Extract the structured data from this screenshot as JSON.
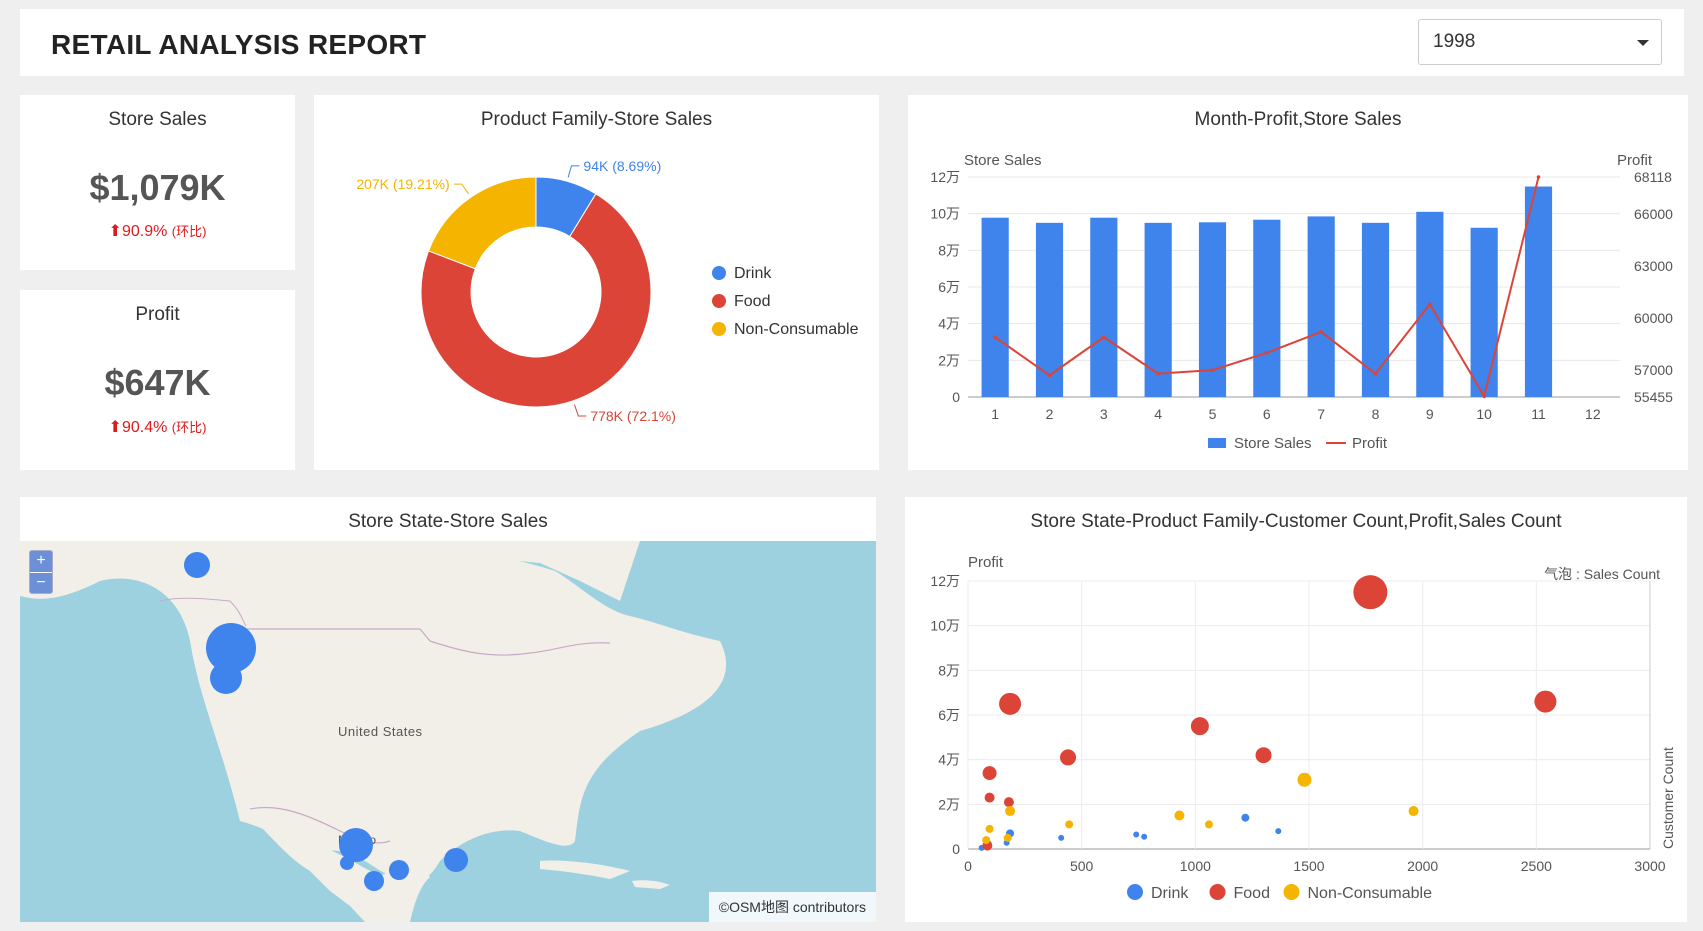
{
  "header": {
    "title": "RETAIL ANALYSIS REPORT",
    "year_selected": "1998"
  },
  "colors": {
    "drink": "#3f83ec",
    "food": "#db4437",
    "non_consumable": "#f4b400",
    "up": "#e0191b"
  },
  "kpis": {
    "store_sales": {
      "label": "Store Sales",
      "value": "$1,079K",
      "change": "90.9%",
      "change_note": "(环比)"
    },
    "profit": {
      "label": "Profit",
      "value": "$647K",
      "change": "90.4%",
      "change_note": "(环比)"
    }
  },
  "donut": {
    "title": "Product Family-Store Sales",
    "slices": [
      {
        "name": "Drink",
        "value": 94,
        "label": "94K (8.69%)",
        "color": "#3f83ec"
      },
      {
        "name": "Food",
        "value": 778,
        "label": "778K (72.1%)",
        "color": "#db4437"
      },
      {
        "name": "Non-Consumable",
        "value": 207,
        "label": "207K (19.21%)",
        "color": "#f4b400"
      }
    ]
  },
  "combo": {
    "title": "Month-Profit,Store Sales",
    "chart_data": {
      "type": "bar",
      "title": "Month-Profit,Store Sales",
      "ylabel": "Store Sales",
      "y2label": "Profit",
      "categories": [
        "1",
        "2",
        "3",
        "4",
        "5",
        "6",
        "7",
        "8",
        "9",
        "10",
        "11",
        "12"
      ],
      "ylim": [
        0,
        120000
      ],
      "y2lim": [
        55455,
        68118
      ],
      "y_ticks": [
        "0",
        "2万",
        "4万",
        "6万",
        "8万",
        "10万",
        "12万"
      ],
      "y2_ticks": [
        "55455",
        "57000",
        "60000",
        "63000",
        "66000",
        "68118"
      ],
      "series": [
        {
          "name": "Store Sales",
          "type": "bar",
          "color": "#3f83ec",
          "values": [
            97800,
            95000,
            97800,
            95000,
            95300,
            96700,
            98500,
            95000,
            101000,
            92300,
            114800,
            null
          ]
        },
        {
          "name": "Profit",
          "type": "line",
          "color": "#db4437",
          "values": [
            58900,
            56700,
            58900,
            56800,
            57000,
            58000,
            59200,
            56800,
            60800,
            55500,
            68118,
            null
          ]
        }
      ],
      "legend": "bottom"
    }
  },
  "map": {
    "title": "Store State-Store Sales",
    "zoom_in": "+",
    "zoom_out": "−",
    "country_label": "United States",
    "mexico_label": "Mexico",
    "attribution": "©OSM地图 contributors"
  },
  "bubble": {
    "title": "Store State-Product Family-Customer Count,Profit,Sales Count",
    "chart_data": {
      "type": "scatter",
      "title": "Store State-Product Family-Customer Count,Profit,Sales Count",
      "ylabel": "Profit",
      "y2label": "Customer Count",
      "size_label": "气泡 : Sales Count",
      "xlim": [
        0,
        3000
      ],
      "ylim": [
        0,
        120000
      ],
      "x_ticks": [
        "0",
        "500",
        "1000",
        "1500",
        "2000",
        "2500",
        "3000"
      ],
      "y_ticks": [
        "0",
        "2万",
        "4万",
        "6万",
        "8万",
        "10万",
        "12万"
      ],
      "legend": "bottom",
      "series": [
        {
          "name": "Drink",
          "color": "#3f83ec",
          "points": [
            {
              "x": 60,
              "y": 500,
              "s": 3
            },
            {
              "x": 90,
              "y": 2500,
              "s": 3
            },
            {
              "x": 170,
              "y": 2800,
              "s": 3
            },
            {
              "x": 185,
              "y": 7000,
              "s": 4
            },
            {
              "x": 410,
              "y": 5000,
              "s": 3
            },
            {
              "x": 740,
              "y": 6500,
              "s": 3
            },
            {
              "x": 775,
              "y": 5500,
              "s": 3
            },
            {
              "x": 1220,
              "y": 14000,
              "s": 4
            },
            {
              "x": 1365,
              "y": 8000,
              "s": 3
            }
          ]
        },
        {
          "name": "Food",
          "color": "#db4437",
          "points": [
            {
              "x": 85,
              "y": 1500,
              "s": 5
            },
            {
              "x": 95,
              "y": 23000,
              "s": 5
            },
            {
              "x": 95,
              "y": 34000,
              "s": 7
            },
            {
              "x": 180,
              "y": 21000,
              "s": 5
            },
            {
              "x": 185,
              "y": 65000,
              "s": 11
            },
            {
              "x": 440,
              "y": 41000,
              "s": 8
            },
            {
              "x": 1020,
              "y": 55000,
              "s": 9
            },
            {
              "x": 1300,
              "y": 42000,
              "s": 8
            },
            {
              "x": 1770,
              "y": 115000,
              "s": 17
            },
            {
              "x": 2540,
              "y": 66000,
              "s": 11
            }
          ]
        },
        {
          "name": "Non-Consumable",
          "color": "#f4b400",
          "points": [
            {
              "x": 80,
              "y": 4000,
              "s": 4
            },
            {
              "x": 95,
              "y": 9000,
              "s": 4
            },
            {
              "x": 175,
              "y": 5000,
              "s": 4
            },
            {
              "x": 185,
              "y": 17000,
              "s": 5
            },
            {
              "x": 445,
              "y": 11000,
              "s": 4
            },
            {
              "x": 930,
              "y": 15000,
              "s": 5
            },
            {
              "x": 1060,
              "y": 11000,
              "s": 4
            },
            {
              "x": 1480,
              "y": 31000,
              "s": 7
            },
            {
              "x": 1960,
              "y": 17000,
              "s": 5
            }
          ]
        }
      ]
    }
  }
}
